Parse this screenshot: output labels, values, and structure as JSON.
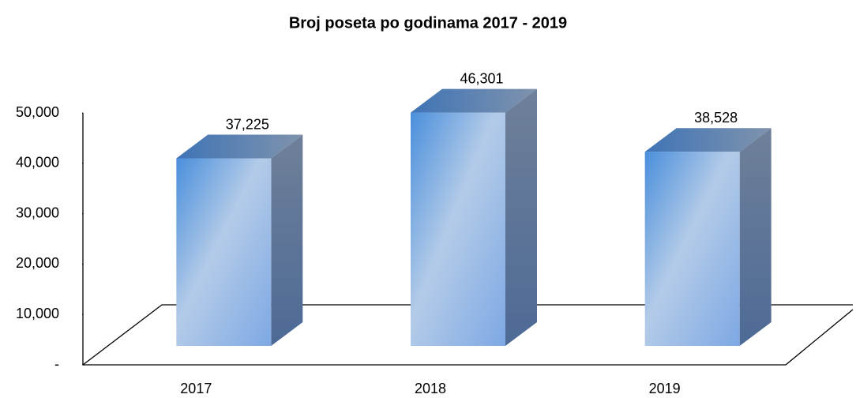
{
  "chart_data": {
    "type": "bar3d",
    "title": "Broj poseta po godinama 2017 - 2019",
    "categories": [
      "2017",
      "2018",
      "2019"
    ],
    "values": [
      37225,
      46301,
      38528
    ],
    "value_labels": [
      "37,225",
      "46,301",
      "38,528"
    ],
    "color": "#5b9bd5",
    "ylim": [
      0,
      50000
    ],
    "yticks": [
      {
        "value": 0,
        "label": "-"
      },
      {
        "value": 10000,
        "label": "10,000"
      },
      {
        "value": 20000,
        "label": "20,000"
      },
      {
        "value": 30000,
        "label": "30,000"
      },
      {
        "value": 40000,
        "label": "40,000"
      },
      {
        "value": 50000,
        "label": "50,000"
      }
    ]
  }
}
